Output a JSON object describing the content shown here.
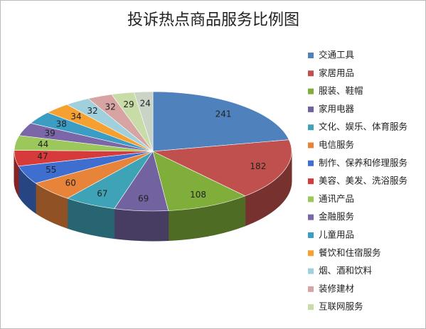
{
  "chart_data": {
    "type": "pie",
    "title": "投诉热点商品服务比例图",
    "categories": [
      "交通工具",
      "家居用品",
      "服装、鞋帽",
      "家用电器",
      "文化、娱乐、体育服务",
      "电信服务",
      "制作、保养和修理服务",
      "美容、美发、洗浴服务",
      "通讯产品",
      "金融服务",
      "儿童用品",
      "餐饮和住宿服务",
      "烟、酒和饮料",
      "装修建材",
      "互联网服务",
      null
    ],
    "values": [
      241,
      182,
      108,
      69,
      67,
      60,
      55,
      47,
      44,
      39,
      38,
      34,
      32,
      32,
      29,
      24
    ],
    "colors": [
      "#4f81bd",
      "#c0504d",
      "#7fae3a",
      "#7262a0",
      "#3fa3b8",
      "#e8843a",
      "#3e6fd0",
      "#d63a3a",
      "#9cc75a",
      "#7b66a8",
      "#3b9cc4",
      "#f5a030",
      "#9fd0dc",
      "#d8a3a3",
      "#c7dca6",
      "#c9d3c6"
    ],
    "legend": "right"
  }
}
